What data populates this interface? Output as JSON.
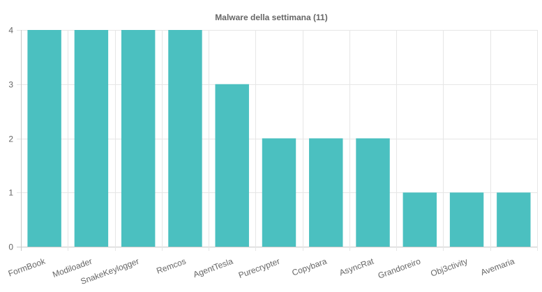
{
  "chart_data": {
    "type": "bar",
    "title": "Malware della settimana (11)",
    "categories": [
      "FormBook",
      "Modiloader",
      "SnakeKeylogger",
      "Remcos",
      "AgentTesla",
      "Purecrypter",
      "Copybara",
      "AsyncRat",
      "Grandoreiro",
      "Obj3ctivity",
      "Avemaria"
    ],
    "values": [
      4,
      4,
      4,
      4,
      3,
      2,
      2,
      2,
      1,
      1,
      1
    ],
    "yticks": [
      "0",
      "1",
      "2",
      "3",
      "4"
    ],
    "ylim": [
      0,
      4
    ],
    "xlabel": "",
    "ylabel": "",
    "grid": true,
    "bar_color": "#4bc0c0"
  }
}
